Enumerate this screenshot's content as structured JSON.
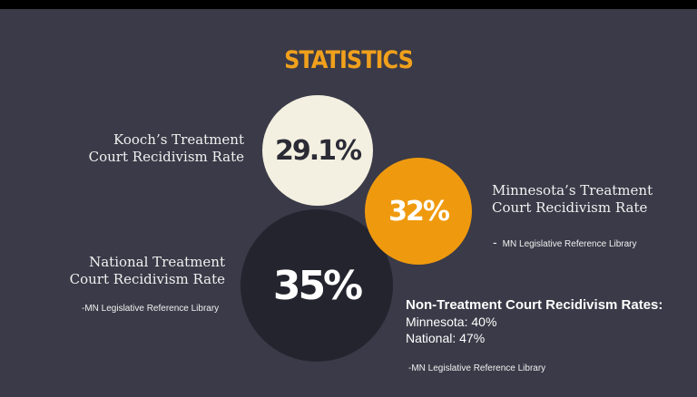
{
  "title": "STATISTICS",
  "circles": {
    "kooch": "29.1%",
    "minnesota": "32%",
    "national": "35%"
  },
  "labels": {
    "kooch": "Kooch’s Treatment\nCourt Recidivism Rate",
    "minnesota": "Minnesota’s Treatment\nCourt Recidivism Rate",
    "national": "National Treatment\nCourt Recidivism Rate"
  },
  "sources": {
    "minnesota_dash": "-",
    "minnesota": "MN Legislative Reference Library",
    "national": "-MN Legislative Reference Library",
    "non_treatment": "-MN Legislative Reference Library"
  },
  "non_treatment": {
    "heading": "Non-Treatment Court Recidivism Rates:",
    "minnesota": "Minnesota: 40%",
    "national": "National: 47%"
  },
  "colors": {
    "background": "#3a3a48",
    "accent": "#f0a01c",
    "cream": "#f4f0e1",
    "dark_circle": "#24242f"
  }
}
